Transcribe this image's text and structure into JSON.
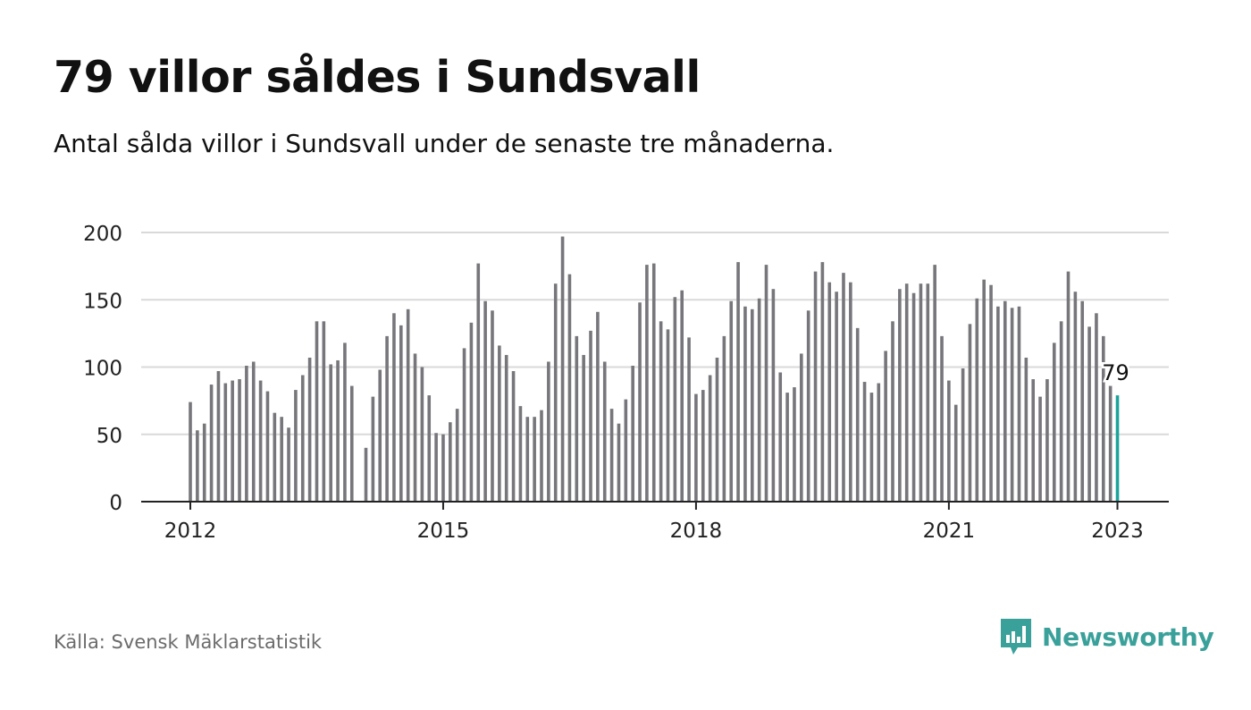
{
  "header": {
    "title": "79 villor såldes i Sundsvall",
    "subtitle": "Antal sålda villor i Sundsvall under de senaste tre månaderna."
  },
  "footer": {
    "source": "Källa: Svensk Mäklarstatistik",
    "brand": "Newsworthy",
    "brand_icon": "bar-chart-speech-bubble-icon"
  },
  "colors": {
    "bar": "#76767b",
    "highlight": "#1ba39c",
    "grid": "#d9d9d9",
    "axis": "#222222",
    "brand": "#3aa19a"
  },
  "chart_data": {
    "type": "bar",
    "title": "79 villor såldes i Sundsvall",
    "subtitle": "Antal sålda villor i Sundsvall under de senaste tre månaderna.",
    "xlabel": "",
    "ylabel": "",
    "ylim": [
      0,
      200
    ],
    "yticks": [
      0,
      50,
      100,
      150,
      200
    ],
    "xticks": [
      "2012",
      "2015",
      "2018",
      "2021",
      "2023"
    ],
    "grid": true,
    "highlight_label": "79",
    "series": [
      {
        "values": [
          74,
          53,
          58,
          87,
          97,
          88,
          90,
          91,
          101,
          104,
          90,
          82,
          66,
          63,
          55,
          83,
          94,
          107,
          134,
          134,
          102,
          105,
          118,
          86,
          null,
          40,
          78,
          98,
          123,
          140,
          131,
          143,
          110,
          100,
          79,
          51,
          50,
          59,
          69,
          114,
          133,
          177,
          149,
          142,
          116,
          109,
          97,
          71,
          63,
          63,
          68,
          104,
          162,
          197,
          169,
          123,
          109,
          127,
          141,
          104,
          69,
          58,
          76,
          101,
          148,
          176,
          177,
          134,
          128,
          152,
          157,
          122,
          80,
          83,
          94,
          107,
          123,
          149,
          178,
          145,
          143,
          151,
          176,
          158,
          96,
          81,
          85,
          110,
          142,
          171,
          178,
          163,
          156,
          170,
          163,
          129,
          89,
          81,
          88,
          112,
          134,
          158,
          162,
          155,
          162,
          162,
          176,
          123,
          90,
          72,
          99,
          132,
          151,
          165,
          161,
          145,
          149,
          144,
          145,
          107,
          91,
          78,
          91,
          118,
          134,
          171,
          156,
          149,
          130,
          140,
          123,
          86,
          79
        ]
      }
    ]
  }
}
